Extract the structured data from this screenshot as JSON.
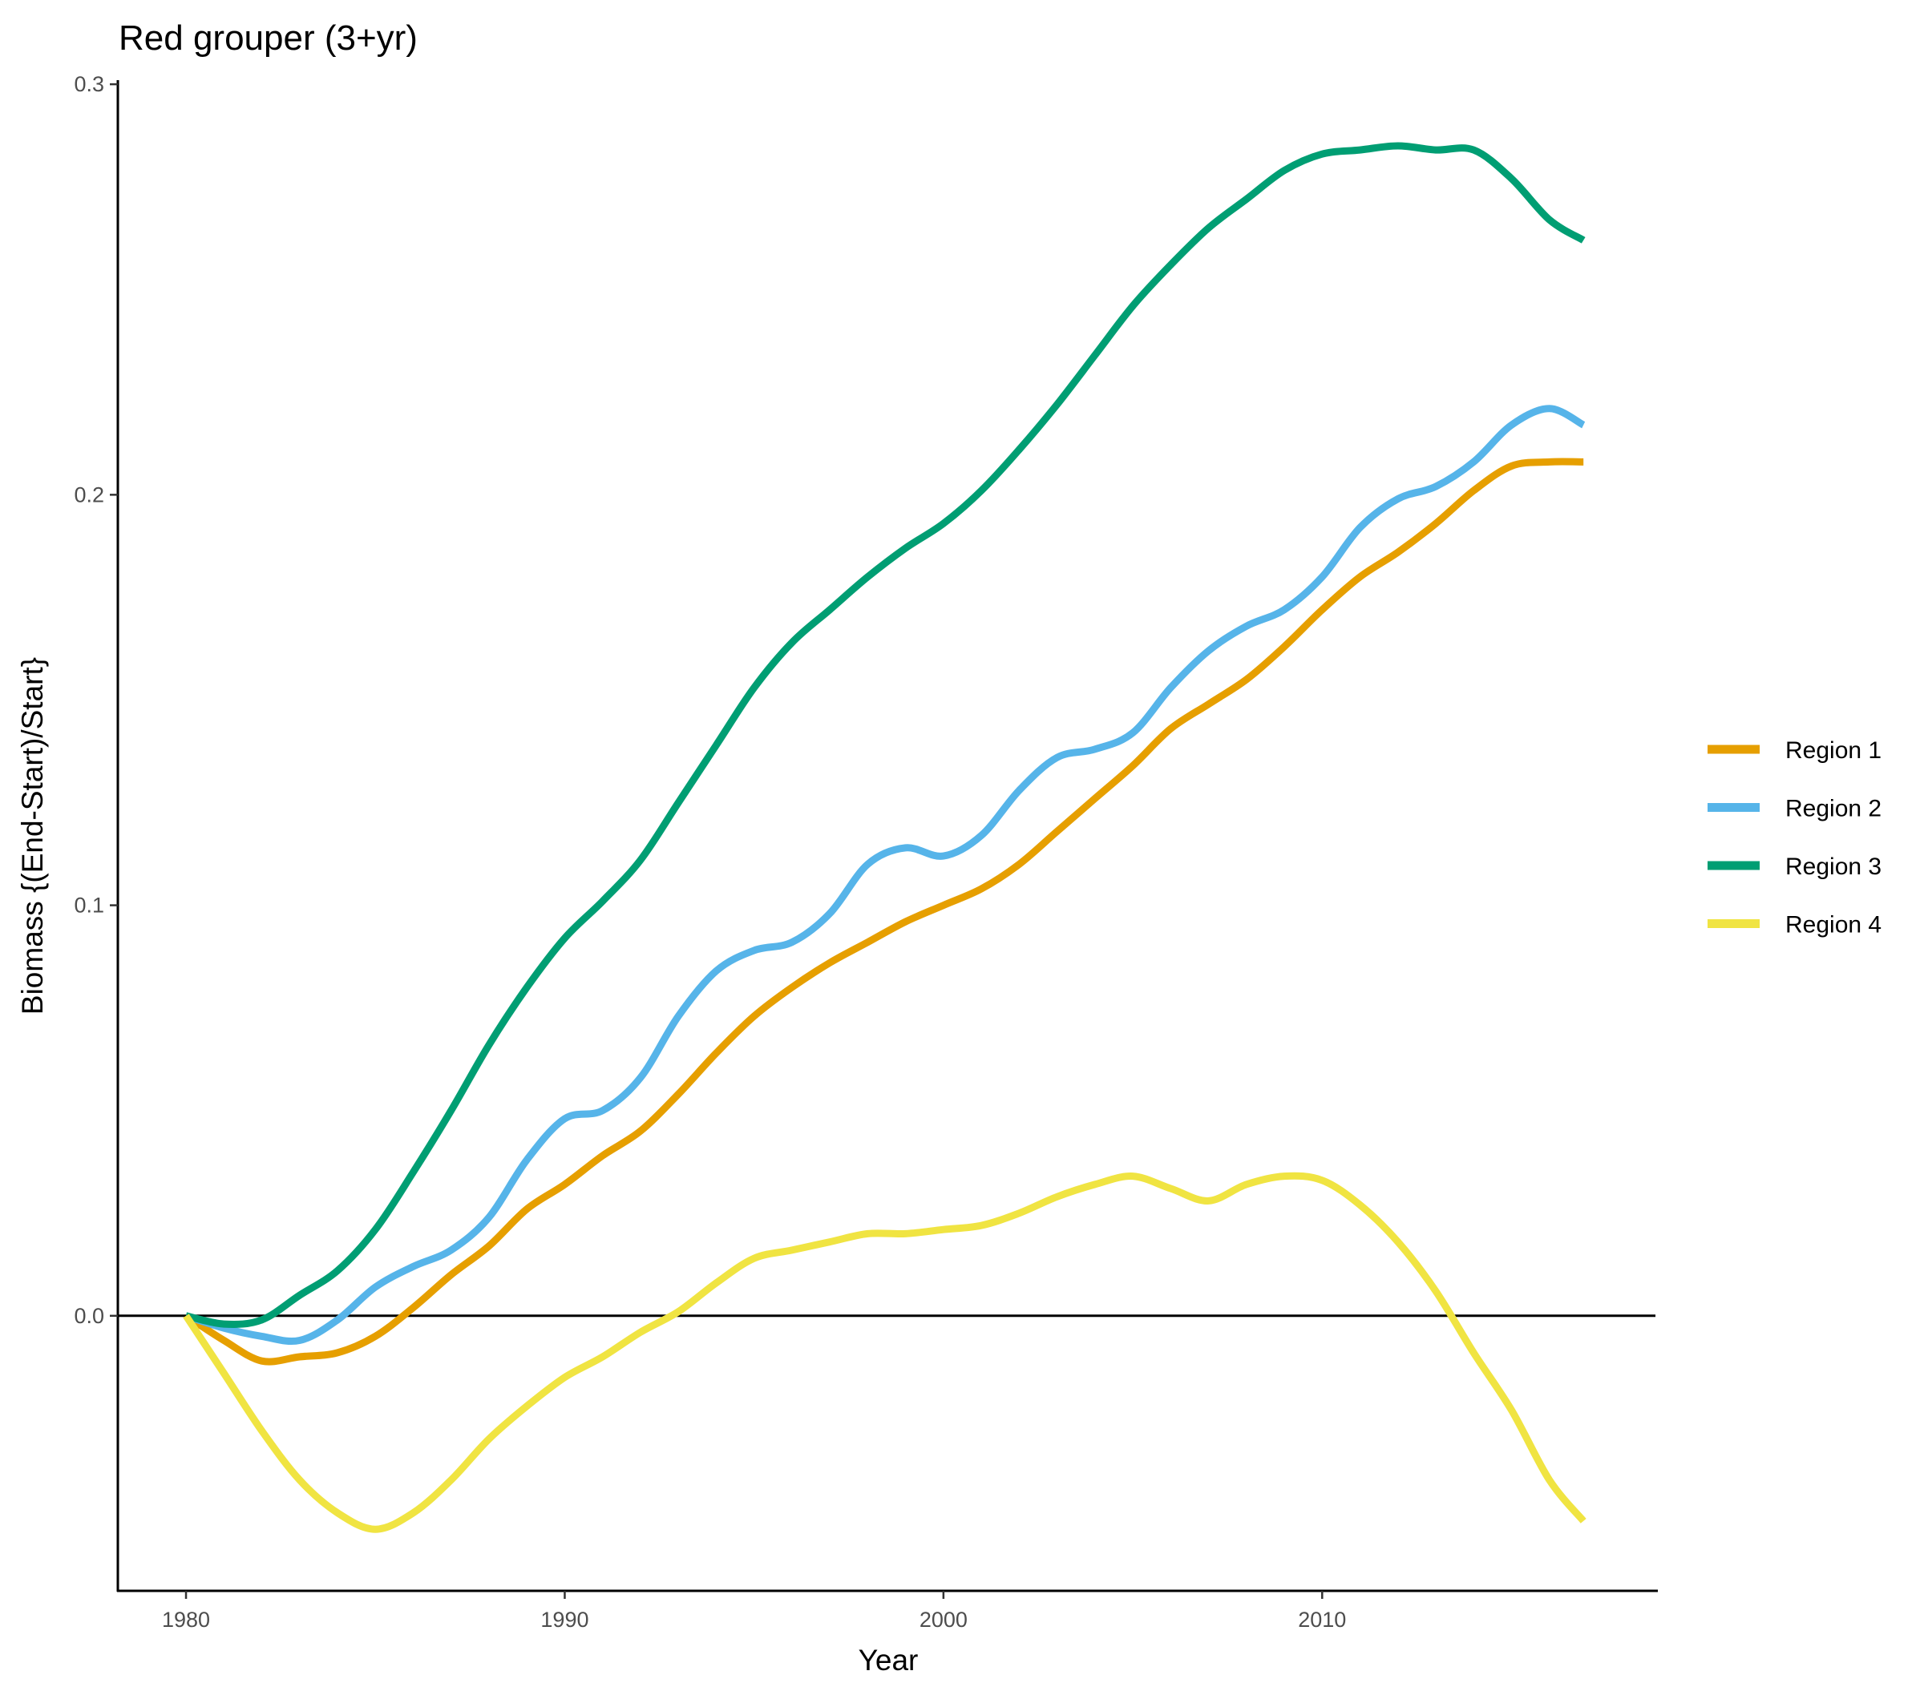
{
  "chart_data": {
    "type": "line",
    "title": "Red grouper (3+yr)",
    "xlabel": "Year",
    "ylabel": "Biomass {(End-Start)/Start}",
    "xlim": [
      1978.2,
      2018.8
    ],
    "ylim": [
      -0.067,
      0.301
    ],
    "x_ticks": [
      1980,
      1990,
      2000,
      2010
    ],
    "x_tick_labels": [
      "1980",
      "1990",
      "2000",
      "2010"
    ],
    "y_ticks": [
      0.0,
      0.1,
      0.2,
      0.3
    ],
    "y_tick_labels": [
      "0.0",
      "0.1",
      "0.2",
      "0.3"
    ],
    "reference_line": 0,
    "grid": false,
    "legend_position": "right",
    "series": [
      {
        "name": "Region 1",
        "color": "#E69F00",
        "points": [
          [
            1980,
            0
          ],
          [
            1981,
            -0.006
          ],
          [
            1982,
            -0.011
          ],
          [
            1983,
            -0.01
          ],
          [
            1984,
            -0.009
          ],
          [
            1985,
            -0.005
          ],
          [
            1986,
            0.002
          ],
          [
            1987,
            0.01
          ],
          [
            1988,
            0.017
          ],
          [
            1989,
            0.026
          ],
          [
            1990,
            0.032
          ],
          [
            1991,
            0.039
          ],
          [
            1992,
            0.045
          ],
          [
            1993,
            0.054
          ],
          [
            1994,
            0.064
          ],
          [
            1995,
            0.073
          ],
          [
            1996,
            0.08
          ],
          [
            1997,
            0.086
          ],
          [
            1998,
            0.091
          ],
          [
            1999,
            0.096
          ],
          [
            2000,
            0.1
          ],
          [
            2001,
            0.104
          ],
          [
            2002,
            0.11
          ],
          [
            2003,
            0.118
          ],
          [
            2004,
            0.126
          ],
          [
            2005,
            0.134
          ],
          [
            2006,
            0.143
          ],
          [
            2007,
            0.149
          ],
          [
            2008,
            0.155
          ],
          [
            2009,
            0.163
          ],
          [
            2010,
            0.172
          ],
          [
            2011,
            0.18
          ],
          [
            2012,
            0.186
          ],
          [
            2013,
            0.193
          ],
          [
            2014,
            0.201
          ],
          [
            2015,
            0.207
          ],
          [
            2016,
            0.208
          ],
          [
            2016.9,
            0.208
          ]
        ]
      },
      {
        "name": "Region 2",
        "color": "#56B4E9",
        "points": [
          [
            1980,
            0
          ],
          [
            1981,
            -0.003
          ],
          [
            1982,
            -0.005
          ],
          [
            1983,
            -0.006
          ],
          [
            1984,
            -0.001
          ],
          [
            1985,
            0.007
          ],
          [
            1986,
            0.012
          ],
          [
            1987,
            0.016
          ],
          [
            1988,
            0.024
          ],
          [
            1989,
            0.038
          ],
          [
            1990,
            0.048
          ],
          [
            1991,
            0.05
          ],
          [
            1992,
            0.058
          ],
          [
            1993,
            0.073
          ],
          [
            1994,
            0.084
          ],
          [
            1995,
            0.089
          ],
          [
            1996,
            0.091
          ],
          [
            1997,
            0.098
          ],
          [
            1998,
            0.11
          ],
          [
            1999,
            0.114
          ],
          [
            2000,
            0.112
          ],
          [
            2001,
            0.117
          ],
          [
            2002,
            0.128
          ],
          [
            2003,
            0.136
          ],
          [
            2004,
            0.138
          ],
          [
            2005,
            0.142
          ],
          [
            2006,
            0.153
          ],
          [
            2007,
            0.162
          ],
          [
            2008,
            0.168
          ],
          [
            2009,
            0.172
          ],
          [
            2010,
            0.18
          ],
          [
            2011,
            0.192
          ],
          [
            2012,
            0.199
          ],
          [
            2013,
            0.202
          ],
          [
            2014,
            0.208
          ],
          [
            2015,
            0.217
          ],
          [
            2016,
            0.221
          ],
          [
            2016.9,
            0.217
          ]
        ]
      },
      {
        "name": "Region 3",
        "color": "#009E73",
        "points": [
          [
            1980,
            0
          ],
          [
            1981,
            -0.002
          ],
          [
            1982,
            -0.001
          ],
          [
            1983,
            0.005
          ],
          [
            1984,
            0.011
          ],
          [
            1985,
            0.021
          ],
          [
            1986,
            0.035
          ],
          [
            1987,
            0.05
          ],
          [
            1988,
            0.066
          ],
          [
            1989,
            0.08
          ],
          [
            1990,
            0.092
          ],
          [
            1991,
            0.101
          ],
          [
            1992,
            0.111
          ],
          [
            1993,
            0.125
          ],
          [
            1994,
            0.139
          ],
          [
            1995,
            0.153
          ],
          [
            1996,
            0.164
          ],
          [
            1997,
            0.172
          ],
          [
            1998,
            0.18
          ],
          [
            1999,
            0.187
          ],
          [
            2000,
            0.193
          ],
          [
            2001,
            0.201
          ],
          [
            2002,
            0.211
          ],
          [
            2003,
            0.222
          ],
          [
            2004,
            0.234
          ],
          [
            2005,
            0.246
          ],
          [
            2006,
            0.256
          ],
          [
            2007,
            0.265
          ],
          [
            2008,
            0.272
          ],
          [
            2009,
            0.279
          ],
          [
            2010,
            0.283
          ],
          [
            2011,
            0.284
          ],
          [
            2012,
            0.285
          ],
          [
            2013,
            0.284
          ],
          [
            2014,
            0.284
          ],
          [
            2015,
            0.277
          ],
          [
            2016,
            0.267
          ],
          [
            2016.9,
            0.262
          ]
        ]
      },
      {
        "name": "Region 4",
        "color": "#F0E442",
        "points": [
          [
            1980,
            0
          ],
          [
            1981,
            -0.014
          ],
          [
            1982,
            -0.028
          ],
          [
            1983,
            -0.04
          ],
          [
            1984,
            -0.048
          ],
          [
            1985,
            -0.052
          ],
          [
            1986,
            -0.048
          ],
          [
            1987,
            -0.04
          ],
          [
            1988,
            -0.03
          ],
          [
            1989,
            -0.022
          ],
          [
            1990,
            -0.015
          ],
          [
            1991,
            -0.01
          ],
          [
            1992,
            -0.004
          ],
          [
            1993,
            0.001
          ],
          [
            1994,
            0.008
          ],
          [
            1995,
            0.014
          ],
          [
            1996,
            0.016
          ],
          [
            1997,
            0.018
          ],
          [
            1998,
            0.02
          ],
          [
            1999,
            0.02
          ],
          [
            2000,
            0.021
          ],
          [
            2001,
            0.022
          ],
          [
            2002,
            0.025
          ],
          [
            2003,
            0.029
          ],
          [
            2004,
            0.032
          ],
          [
            2005,
            0.034
          ],
          [
            2006,
            0.031
          ],
          [
            2007,
            0.028
          ],
          [
            2008,
            0.032
          ],
          [
            2009,
            0.034
          ],
          [
            2010,
            0.033
          ],
          [
            2011,
            0.027
          ],
          [
            2012,
            0.018
          ],
          [
            2013,
            0.006
          ],
          [
            2014,
            -0.009
          ],
          [
            2015,
            -0.023
          ],
          [
            2016,
            -0.04
          ],
          [
            2016.9,
            -0.05
          ]
        ]
      }
    ]
  }
}
